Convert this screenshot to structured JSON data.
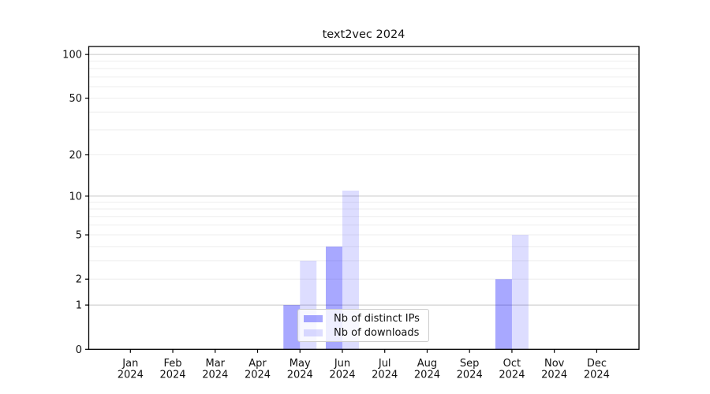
{
  "title": "text2vec 2024",
  "chart_data": {
    "type": "bar",
    "title": "text2vec 2024",
    "categories": [
      "Jan",
      "Feb",
      "Mar",
      "Apr",
      "May",
      "Jun",
      "Jul",
      "Aug",
      "Sep",
      "Oct",
      "Nov",
      "Dec"
    ],
    "x_year_label": "2024",
    "series": [
      {
        "name": "Nb of distinct IPs",
        "color": "rgba(0,0,255,0.34)",
        "values": [
          0,
          0,
          0,
          0,
          1,
          4,
          0,
          0,
          0,
          2,
          0,
          0
        ]
      },
      {
        "name": "Nb of downloads",
        "color": "rgba(0,0,255,0.135)",
        "values": [
          0,
          0,
          0,
          0,
          3,
          11,
          0,
          0,
          0,
          5,
          0,
          0
        ]
      }
    ],
    "xlabel": "",
    "ylabel": "",
    "yscale": "log1p",
    "ylim": [
      0,
      113.5
    ],
    "y_ticks": [
      0,
      1,
      2,
      5,
      10,
      20,
      50,
      100
    ],
    "y_major_gridlines": [
      1,
      10,
      100
    ],
    "y_minor_gridlines": [
      2,
      3,
      4,
      5,
      6,
      7,
      8,
      9,
      20,
      30,
      40,
      50,
      60,
      70,
      80,
      90
    ],
    "grid": true,
    "legend_position": "lower center-left inside plot"
  },
  "legend": {
    "items": [
      {
        "label": "Nb of distinct IPs"
      },
      {
        "label": "Nb of downloads"
      }
    ]
  },
  "colors": {
    "bar_distinct_ips": "rgba(0,0,255,0.34)",
    "bar_downloads": "rgba(0,0,255,0.135)",
    "grid_major": "#c6c6c6",
    "grid_minor": "#eeeeee",
    "axis": "#000000",
    "text": "#111111",
    "legend_border": "#cccccc"
  }
}
